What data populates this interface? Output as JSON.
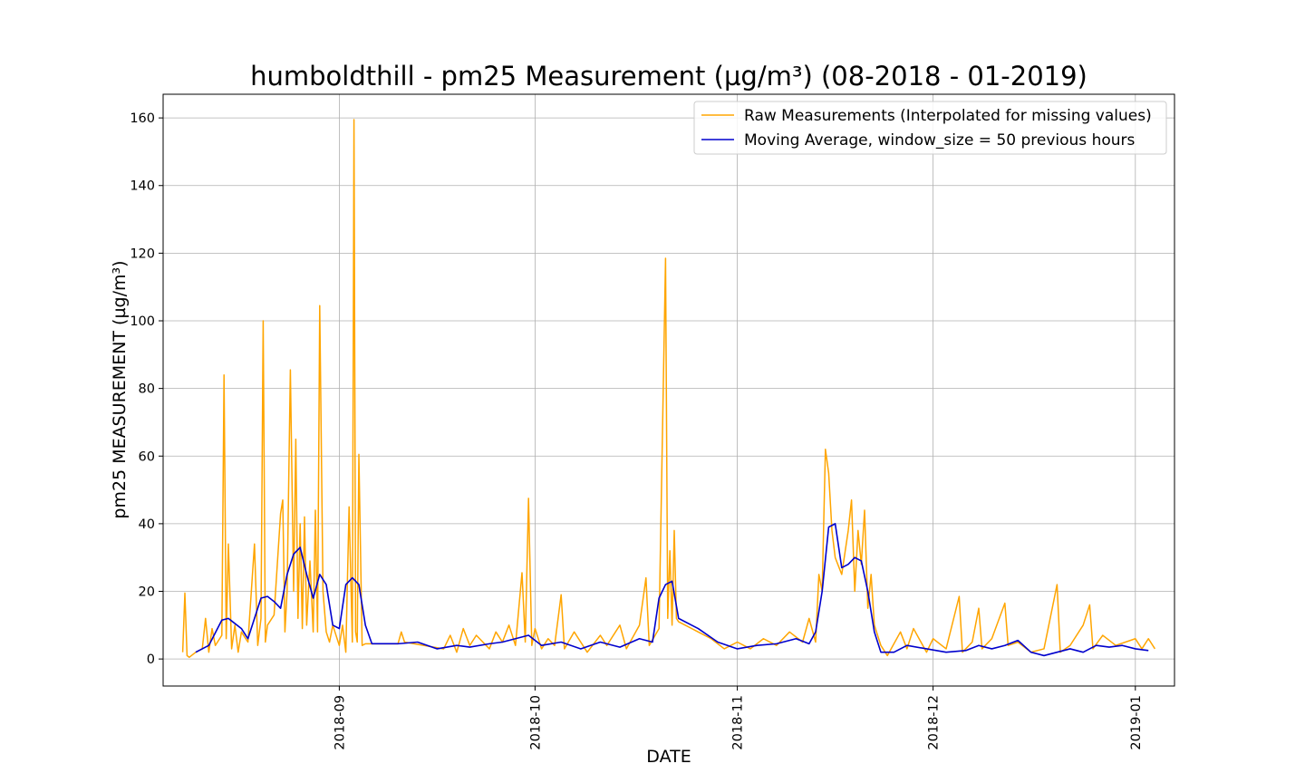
{
  "chart_data": {
    "type": "line",
    "title": "humboldthill - pm25 Measurement (µg/m³) (08-2018 - 01-2019)",
    "xlabel": "DATE",
    "ylabel": "pm25 MEASUREMENT (µg/m³)",
    "x_range": [
      "2018-08-05",
      "2019-01-07"
    ],
    "ylim": [
      -8,
      167
    ],
    "x_ticks": [
      "2018-09",
      "2018-10",
      "2018-11",
      "2018-12",
      "2019-01"
    ],
    "x_tick_dates": [
      "2018-09-01",
      "2018-10-01",
      "2018-11-01",
      "2018-12-01",
      "2019-01-01"
    ],
    "y_ticks": [
      0,
      20,
      40,
      60,
      80,
      100,
      120,
      140,
      160
    ],
    "grid": true,
    "legend": "top-right",
    "series": [
      {
        "name": "Raw Measurements (Interpolated for missing values)",
        "color": "#FFA500",
        "points": [
          [
            "2018-08-08",
            2
          ],
          [
            "2018-08-08",
            19.5
          ],
          [
            "2018-08-08",
            1
          ],
          [
            "2018-08-09",
            0.5
          ],
          [
            "2018-08-10",
            2
          ],
          [
            "2018-08-11",
            3
          ],
          [
            "2018-08-11",
            12
          ],
          [
            "2018-08-12",
            2
          ],
          [
            "2018-08-12",
            9
          ],
          [
            "2018-08-13",
            4
          ],
          [
            "2018-08-14",
            7
          ],
          [
            "2018-08-14",
            84
          ],
          [
            "2018-08-14",
            6
          ],
          [
            "2018-08-15",
            34
          ],
          [
            "2018-08-15",
            3
          ],
          [
            "2018-08-16",
            10
          ],
          [
            "2018-08-16",
            2
          ],
          [
            "2018-08-17",
            8
          ],
          [
            "2018-08-18",
            5
          ],
          [
            "2018-08-19",
            34
          ],
          [
            "2018-08-19",
            4
          ],
          [
            "2018-08-20",
            12
          ],
          [
            "2018-08-20",
            100
          ],
          [
            "2018-08-20",
            5
          ],
          [
            "2018-08-21",
            10
          ],
          [
            "2018-08-22",
            13
          ],
          [
            "2018-08-23",
            43
          ],
          [
            "2018-08-23",
            47
          ],
          [
            "2018-08-23",
            8
          ],
          [
            "2018-08-24",
            20
          ],
          [
            "2018-08-24",
            85.5
          ],
          [
            "2018-08-25",
            20
          ],
          [
            "2018-08-25",
            65
          ],
          [
            "2018-08-25",
            12
          ],
          [
            "2018-08-26",
            40
          ],
          [
            "2018-08-26",
            9
          ],
          [
            "2018-08-26",
            42
          ],
          [
            "2018-08-27",
            10
          ],
          [
            "2018-08-27",
            29
          ],
          [
            "2018-08-28",
            8
          ],
          [
            "2018-08-28",
            44
          ],
          [
            "2018-08-28",
            8
          ],
          [
            "2018-08-29",
            104.5
          ],
          [
            "2018-08-29",
            20
          ],
          [
            "2018-08-30",
            8
          ],
          [
            "2018-08-30",
            5
          ],
          [
            "2018-08-31",
            10
          ],
          [
            "2018-09-01",
            4
          ],
          [
            "2018-09-01",
            10
          ],
          [
            "2018-09-02",
            2
          ],
          [
            "2018-09-02",
            45
          ],
          [
            "2018-09-03",
            5
          ],
          [
            "2018-09-03",
            159.5
          ],
          [
            "2018-09-03",
            8
          ],
          [
            "2018-09-03",
            5
          ],
          [
            "2018-09-04",
            60.5
          ],
          [
            "2018-09-04",
            4
          ],
          [
            "2018-09-05",
            4.5
          ],
          [
            "2018-09-10",
            4.5
          ],
          [
            "2018-09-10",
            8
          ],
          [
            "2018-09-11",
            5
          ],
          [
            "2018-09-14",
            4
          ],
          [
            "2018-09-17",
            3
          ],
          [
            "2018-09-18",
            7
          ],
          [
            "2018-09-19",
            2
          ],
          [
            "2018-09-20",
            9
          ],
          [
            "2018-09-21",
            4
          ],
          [
            "2018-09-22",
            7
          ],
          [
            "2018-09-24",
            3
          ],
          [
            "2018-09-25",
            8
          ],
          [
            "2018-09-26",
            5
          ],
          [
            "2018-09-27",
            10
          ],
          [
            "2018-09-28",
            4
          ],
          [
            "2018-09-29",
            25.5
          ],
          [
            "2018-09-29",
            5
          ],
          [
            "2018-09-30",
            47.5
          ],
          [
            "2018-09-30",
            4
          ],
          [
            "2018-10-01",
            9
          ],
          [
            "2018-10-02",
            3
          ],
          [
            "2018-10-03",
            6
          ],
          [
            "2018-10-04",
            4
          ],
          [
            "2018-10-05",
            19
          ],
          [
            "2018-10-05",
            3
          ],
          [
            "2018-10-07",
            8
          ],
          [
            "2018-10-09",
            2
          ],
          [
            "2018-10-11",
            7
          ],
          [
            "2018-10-12",
            4
          ],
          [
            "2018-10-14",
            10
          ],
          [
            "2018-10-15",
            3
          ],
          [
            "2018-10-17",
            10
          ],
          [
            "2018-10-18",
            24
          ],
          [
            "2018-10-18",
            4
          ],
          [
            "2018-10-20",
            9
          ],
          [
            "2018-10-21",
            118.5
          ],
          [
            "2018-10-21",
            12
          ],
          [
            "2018-10-21",
            32
          ],
          [
            "2018-10-22",
            10
          ],
          [
            "2018-10-22",
            38
          ],
          [
            "2018-10-22",
            12
          ],
          [
            "2018-10-23",
            11
          ],
          [
            "2018-10-26",
            8
          ],
          [
            "2018-10-28",
            6
          ],
          [
            "2018-10-30",
            3
          ],
          [
            "2018-11-01",
            5
          ],
          [
            "2018-11-03",
            3
          ],
          [
            "2018-11-05",
            6
          ],
          [
            "2018-11-07",
            4
          ],
          [
            "2018-11-09",
            8
          ],
          [
            "2018-11-11",
            5
          ],
          [
            "2018-11-12",
            12
          ],
          [
            "2018-11-13",
            5
          ],
          [
            "2018-11-13",
            25
          ],
          [
            "2018-11-14",
            20
          ],
          [
            "2018-11-14",
            62
          ],
          [
            "2018-11-15",
            55
          ],
          [
            "2018-11-15",
            38
          ],
          [
            "2018-11-16",
            30
          ],
          [
            "2018-11-17",
            25
          ],
          [
            "2018-11-18",
            38
          ],
          [
            "2018-11-18",
            47
          ],
          [
            "2018-11-19",
            20
          ],
          [
            "2018-11-19",
            38
          ],
          [
            "2018-11-20",
            28
          ],
          [
            "2018-11-20",
            44
          ],
          [
            "2018-11-21",
            15
          ],
          [
            "2018-11-21",
            25
          ],
          [
            "2018-11-22",
            10
          ],
          [
            "2018-11-23",
            4
          ],
          [
            "2018-11-24",
            1
          ],
          [
            "2018-11-26",
            8
          ],
          [
            "2018-11-27",
            3
          ],
          [
            "2018-11-28",
            9
          ],
          [
            "2018-11-30",
            2
          ],
          [
            "2018-12-01",
            6
          ],
          [
            "2018-12-03",
            3
          ],
          [
            "2018-12-05",
            18.5
          ],
          [
            "2018-12-05",
            2
          ],
          [
            "2018-12-07",
            5
          ],
          [
            "2018-12-08",
            15
          ],
          [
            "2018-12-08",
            3
          ],
          [
            "2018-12-10",
            6
          ],
          [
            "2018-12-12",
            16.5
          ],
          [
            "2018-12-12",
            4
          ],
          [
            "2018-12-14",
            5
          ],
          [
            "2018-12-16",
            2
          ],
          [
            "2018-12-18",
            3
          ],
          [
            "2018-12-20",
            22
          ],
          [
            "2018-12-20",
            2
          ],
          [
            "2018-12-22",
            4
          ],
          [
            "2018-12-24",
            10
          ],
          [
            "2018-12-25",
            16
          ],
          [
            "2018-12-25",
            3
          ],
          [
            "2018-12-27",
            7
          ],
          [
            "2018-12-29",
            4
          ],
          [
            "2019-01-01",
            6
          ],
          [
            "2019-01-02",
            3
          ],
          [
            "2019-01-03",
            6
          ],
          [
            "2019-01-04",
            3
          ]
        ]
      },
      {
        "name": "Moving Average, window_size = 50 previous hours",
        "color": "#0000CD",
        "points": [
          [
            "2018-08-10",
            2
          ],
          [
            "2018-08-12",
            4
          ],
          [
            "2018-08-14",
            11.5
          ],
          [
            "2018-08-15",
            12
          ],
          [
            "2018-08-17",
            9
          ],
          [
            "2018-08-18",
            6
          ],
          [
            "2018-08-20",
            18
          ],
          [
            "2018-08-21",
            18.5
          ],
          [
            "2018-08-22",
            17
          ],
          [
            "2018-08-23",
            15
          ],
          [
            "2018-08-24",
            25
          ],
          [
            "2018-08-25",
            31
          ],
          [
            "2018-08-26",
            33
          ],
          [
            "2018-08-27",
            25
          ],
          [
            "2018-08-28",
            18
          ],
          [
            "2018-08-29",
            25
          ],
          [
            "2018-08-30",
            22
          ],
          [
            "2018-08-31",
            10
          ],
          [
            "2018-09-01",
            9
          ],
          [
            "2018-09-02",
            22
          ],
          [
            "2018-09-03",
            24
          ],
          [
            "2018-09-04",
            22
          ],
          [
            "2018-09-05",
            10
          ],
          [
            "2018-09-06",
            4.5
          ],
          [
            "2018-09-10",
            4.5
          ],
          [
            "2018-09-13",
            5
          ],
          [
            "2018-09-16",
            3
          ],
          [
            "2018-09-19",
            4
          ],
          [
            "2018-09-21",
            3.5
          ],
          [
            "2018-09-24",
            4.5
          ],
          [
            "2018-09-26",
            5
          ],
          [
            "2018-09-28",
            6
          ],
          [
            "2018-09-30",
            7
          ],
          [
            "2018-10-02",
            4
          ],
          [
            "2018-10-05",
            5
          ],
          [
            "2018-10-08",
            3
          ],
          [
            "2018-10-11",
            5
          ],
          [
            "2018-10-14",
            3.5
          ],
          [
            "2018-10-17",
            6
          ],
          [
            "2018-10-19",
            5
          ],
          [
            "2018-10-20",
            18
          ],
          [
            "2018-10-21",
            22
          ],
          [
            "2018-10-22",
            23
          ],
          [
            "2018-10-23",
            12
          ],
          [
            "2018-10-26",
            9
          ],
          [
            "2018-10-29",
            5
          ],
          [
            "2018-11-01",
            3
          ],
          [
            "2018-11-04",
            4
          ],
          [
            "2018-11-07",
            4.5
          ],
          [
            "2018-11-10",
            6
          ],
          [
            "2018-11-12",
            4.5
          ],
          [
            "2018-11-13",
            8
          ],
          [
            "2018-11-14",
            20
          ],
          [
            "2018-11-15",
            39
          ],
          [
            "2018-11-16",
            40
          ],
          [
            "2018-11-17",
            27
          ],
          [
            "2018-11-18",
            28
          ],
          [
            "2018-11-19",
            30
          ],
          [
            "2018-11-20",
            29
          ],
          [
            "2018-11-21",
            20
          ],
          [
            "2018-11-22",
            8
          ],
          [
            "2018-11-23",
            2
          ],
          [
            "2018-11-25",
            2
          ],
          [
            "2018-11-27",
            4
          ],
          [
            "2018-11-30",
            3
          ],
          [
            "2018-12-03",
            2
          ],
          [
            "2018-12-06",
            2.5
          ],
          [
            "2018-12-08",
            4
          ],
          [
            "2018-12-10",
            3
          ],
          [
            "2018-12-12",
            4
          ],
          [
            "2018-12-14",
            5.5
          ],
          [
            "2018-12-16",
            2
          ],
          [
            "2018-12-18",
            1
          ],
          [
            "2018-12-20",
            2
          ],
          [
            "2018-12-22",
            3
          ],
          [
            "2018-12-24",
            2
          ],
          [
            "2018-12-26",
            4
          ],
          [
            "2018-12-28",
            3.5
          ],
          [
            "2018-12-30",
            4
          ],
          [
            "2019-01-01",
            3
          ],
          [
            "2019-01-03",
            2.5
          ]
        ]
      }
    ]
  }
}
